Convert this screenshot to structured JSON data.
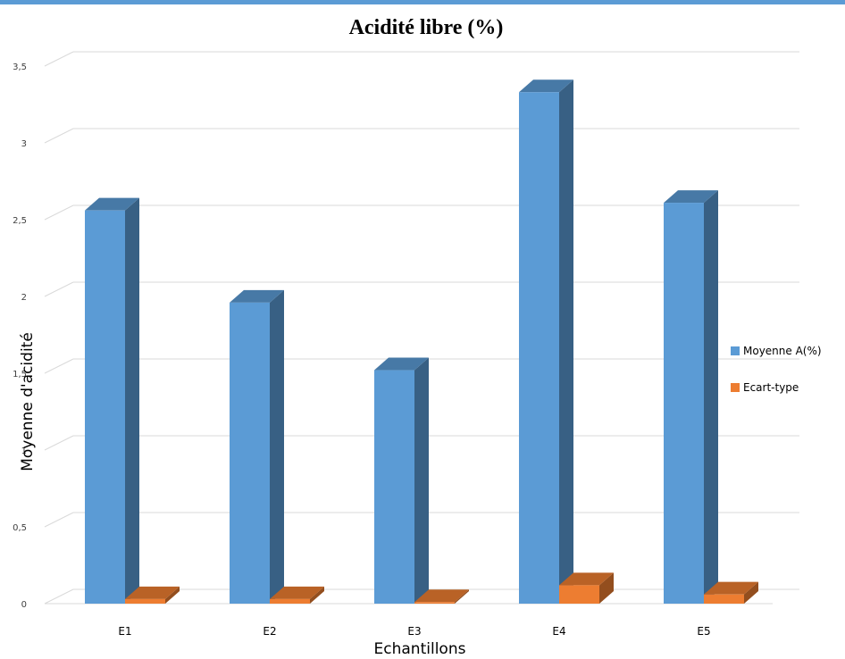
{
  "chart_data": {
    "type": "bar",
    "title": "Acidité libre (%)",
    "xlabel": "Echantillons",
    "ylabel": "Moyenne d'acidité",
    "categories": [
      "E1",
      "E2",
      "E3",
      "E4",
      "E5"
    ],
    "series": [
      {
        "name": "Moyenne A(%)",
        "values": [
          2.56,
          1.96,
          1.52,
          3.33,
          2.61
        ],
        "color": "#5b9bd5"
      },
      {
        "name": "Ecart-type",
        "values": [
          0.03,
          0.03,
          0.01,
          0.12,
          0.06
        ],
        "color": "#ed7d31"
      }
    ],
    "ylim": [
      0,
      3.5
    ],
    "yticks": [
      "0",
      "0,5",
      "1",
      "1,5",
      "2",
      "2,5",
      "3",
      "3,5"
    ],
    "grid": true,
    "legend_position": "right",
    "style": "3d-clustered-column"
  },
  "colors": {
    "accent_bar": "#5b9bd5"
  }
}
